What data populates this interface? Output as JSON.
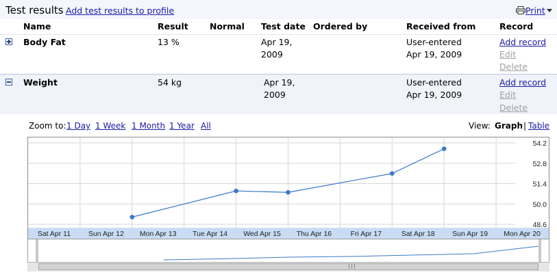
{
  "header": {
    "title": "Test results",
    "add_link": "Add test results to profile",
    "print_label": "Print",
    "print_icon": "printer-icon"
  },
  "columns": [
    "Name",
    "Result",
    "Normal",
    "Test date",
    "Ordered by",
    "Received from",
    "Record"
  ],
  "rows": [
    {
      "name": "Body Fat",
      "result": "13 %",
      "normal": "",
      "test_date_line1": "Apr 19,",
      "test_date_line2": "2009",
      "ordered_by": "",
      "received_line1": "User-entered",
      "received_line2": "Apr 19, 2009",
      "add_record": "Add record",
      "edit": "Edit",
      "delete": "Delete",
      "expanded": false
    },
    {
      "name": "Weight",
      "result": "54 kg",
      "normal": "",
      "test_date_line1": "Apr 19,",
      "test_date_line2": "2009",
      "ordered_by": "",
      "received_line1": "User-entered",
      "received_line2": "Apr 19, 2009",
      "add_record": "Add record",
      "edit": "Edit",
      "delete": "Delete",
      "expanded": true
    }
  ],
  "zoom": {
    "label": "Zoom to:",
    "options": [
      "1 Day",
      "1 Week",
      "1 Month",
      "1 Year",
      "All"
    ]
  },
  "view": {
    "label": "View:",
    "graph": "Graph",
    "separator": "|",
    "table": "Table"
  },
  "colors": {
    "line": "#3a78c8",
    "point": "#3a78c8",
    "axis_band": "#c9dcf4",
    "grid": "#d6d6d6"
  },
  "chart_data": {
    "type": "line",
    "x": [
      "Sat Apr 11",
      "Sun Apr 12",
      "Mon Apr 13",
      "Tue Apr 14",
      "Wed Apr 15",
      "Thu Apr 16",
      "Fri Apr 17",
      "Sat Apr 18",
      "Sun Apr 19",
      "Mon Apr 20"
    ],
    "series": [
      {
        "points": [
          {
            "x": "Sun Apr 12",
            "y": 49.1
          },
          {
            "x": "Tue Apr 14",
            "y": 50.9
          },
          {
            "x": "Wed Apr 15",
            "y": 50.8
          },
          {
            "x": "Fri Apr 17",
            "y": 52.1
          },
          {
            "x": "Sat Apr 18",
            "y": 53.8
          }
        ]
      }
    ],
    "y_ticks": [
      54.2,
      52.8,
      51.4,
      50.0,
      48.6
    ],
    "ylim": [
      48.6,
      54.2
    ],
    "grid": true,
    "y_axis_side": "right"
  }
}
